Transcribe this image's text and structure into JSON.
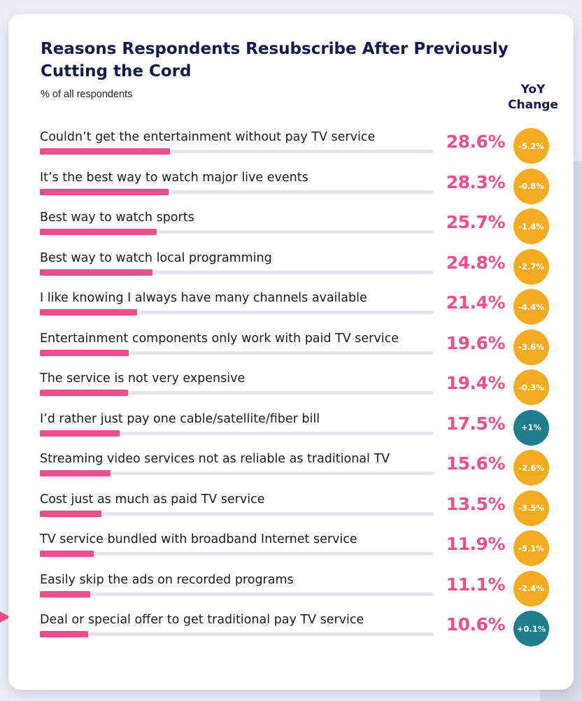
{
  "colors": {
    "bar": "#ec4f8b",
    "negative_badge": "#f3ab22",
    "positive_badge": "#1f7d8c",
    "title": "#141a4e"
  },
  "chart_data": {
    "type": "bar",
    "orientation": "horizontal",
    "title": "Reasons Respondents Resubscribe After Previously Cutting the Cord",
    "subtitle": "% of all respondents",
    "yoy_header": "YoY Change",
    "xlim": [
      0,
      100
    ],
    "categories": [
      "Couldn’t get the entertainment without pay TV service",
      "It’s the best way to watch major live events",
      "Best way to watch sports",
      "Best way to watch local programming",
      "I like knowing I always have many channels available",
      "Entertainment components only work with paid TV service",
      "The service is not very expensive",
      "I’d rather just pay one cable/satellite/fiber bill",
      "Streaming video services not as reliable as traditional TV",
      "Cost just as much as paid TV service",
      "TV service bundled with broadband Internet service",
      "Easily skip the ads on recorded programs",
      "Deal or special offer to get traditional pay TV service"
    ],
    "values": [
      28.6,
      28.3,
      25.7,
      24.8,
      21.4,
      19.6,
      19.4,
      17.5,
      15.6,
      13.5,
      11.9,
      11.1,
      10.6
    ],
    "value_labels": [
      "28.6%",
      "28.3%",
      "25.7%",
      "24.8%",
      "21.4%",
      "19.6%",
      "19.4%",
      "17.5%",
      "15.6%",
      "13.5%",
      "11.9%",
      "11.1%",
      "10.6%"
    ],
    "yoy_change_labels": [
      "-5.2%",
      "-0.8%",
      "-1.4%",
      "-2.7%",
      "-4.4%",
      "-3.6%",
      "-0.3%",
      "+1%",
      "-2.6%",
      "-3.5%",
      "-5.1%",
      "-2.4%",
      "+0.1%"
    ],
    "yoy_change_values": [
      -5.2,
      -0.8,
      -1.4,
      -2.7,
      -4.4,
      -3.6,
      -0.3,
      1,
      -2.6,
      -3.5,
      -5.1,
      -2.4,
      0.1
    ],
    "highlighted_category": "Deal or special offer to get traditional pay TV service"
  }
}
